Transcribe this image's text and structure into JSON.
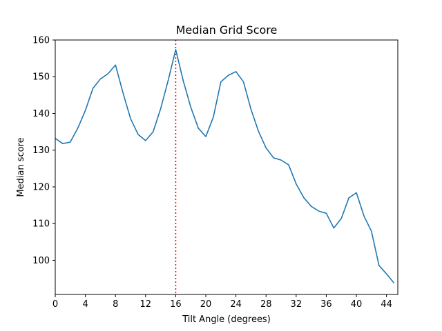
{
  "chart_data": {
    "type": "line",
    "title": "Median Grid Score",
    "xlabel": "Tilt Angle (degrees)",
    "ylabel": "Median score",
    "xlim": [
      0,
      45.5
    ],
    "ylim": [
      90.7,
      160
    ],
    "xticks": [
      0,
      4,
      8,
      12,
      16,
      20,
      24,
      28,
      32,
      36,
      40,
      44
    ],
    "yticks": [
      100,
      110,
      120,
      130,
      140,
      150,
      160
    ],
    "grid": false,
    "line_color": "#1f77b4",
    "marker_line": {
      "x": 16,
      "color": "#ff0000",
      "style": "dotted"
    },
    "x": [
      0,
      1,
      2,
      3,
      4,
      5,
      6,
      7,
      8,
      9,
      10,
      11,
      12,
      13,
      14,
      15,
      16,
      17,
      18,
      19,
      20,
      21,
      22,
      23,
      24,
      25,
      26,
      27,
      28,
      29,
      30,
      31,
      32,
      33,
      34,
      35,
      36,
      37,
      38,
      39,
      40,
      41,
      42,
      43,
      44,
      45
    ],
    "y": [
      133.2,
      131.8,
      132.2,
      136.0,
      140.8,
      146.8,
      149.4,
      150.8,
      153.2,
      145.6,
      138.6,
      134.3,
      132.6,
      135.0,
      141.3,
      149.0,
      157.4,
      148.9,
      141.7,
      136.0,
      133.7,
      139.0,
      148.6,
      150.4,
      151.4,
      148.6,
      141.1,
      135.1,
      130.6,
      127.9,
      127.3,
      126.0,
      120.8,
      117.1,
      114.7,
      113.4,
      112.8,
      108.8,
      111.4,
      117.0,
      118.4,
      112.1,
      107.9,
      98.6,
      96.3,
      93.8
    ]
  }
}
